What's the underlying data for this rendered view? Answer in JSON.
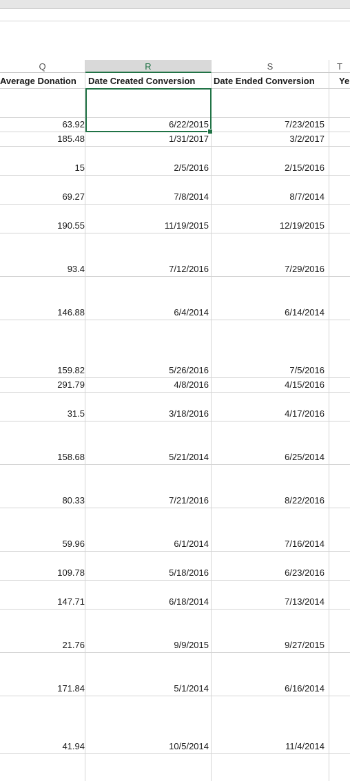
{
  "columns": {
    "letters": {
      "Q": "Q",
      "R": "R",
      "S": "S",
      "T": "T"
    },
    "headers": {
      "Q": "Average Donation",
      "R": "Date Created Conversion",
      "S": "Date Ended Conversion",
      "T": "Ye"
    },
    "selected": "R"
  },
  "rows": [
    {
      "Q": "",
      "R": "",
      "S": ""
    },
    {
      "Q": "63.92",
      "R": "6/22/2015",
      "S": "7/23/2015"
    },
    {
      "Q": "185.48",
      "R": "1/31/2017",
      "S": "3/2/2017"
    },
    {
      "Q": "15",
      "R": "2/5/2016",
      "S": "2/15/2016"
    },
    {
      "Q": "69.27",
      "R": "7/8/2014",
      "S": "8/7/2014"
    },
    {
      "Q": "190.55",
      "R": "11/19/2015",
      "S": "12/19/2015"
    },
    {
      "Q": "93.4",
      "R": "7/12/2016",
      "S": "7/29/2016"
    },
    {
      "Q": "146.88",
      "R": "6/4/2014",
      "S": "6/14/2014"
    },
    {
      "Q": "159.82",
      "R": "5/26/2016",
      "S": "7/5/2016"
    },
    {
      "Q": "291.79",
      "R": "4/8/2016",
      "S": "4/15/2016"
    },
    {
      "Q": "31.5",
      "R": "3/18/2016",
      "S": "4/17/2016"
    },
    {
      "Q": "158.68",
      "R": "5/21/2014",
      "S": "6/25/2014"
    },
    {
      "Q": "80.33",
      "R": "7/21/2016",
      "S": "8/22/2016"
    },
    {
      "Q": "59.96",
      "R": "6/1/2014",
      "S": "7/16/2014"
    },
    {
      "Q": "109.78",
      "R": "5/18/2016",
      "S": "6/23/2016"
    },
    {
      "Q": "147.71",
      "R": "6/18/2014",
      "S": "7/13/2014"
    },
    {
      "Q": "21.76",
      "R": "9/9/2015",
      "S": "9/27/2015"
    },
    {
      "Q": "171.84",
      "R": "5/1/2014",
      "S": "6/16/2014"
    },
    {
      "Q": "41.94",
      "R": "10/5/2014",
      "S": "11/4/2014"
    }
  ],
  "colors": {
    "selection": "#217346",
    "gridline": "#d4d4d4",
    "header_bg_selected": "#d9d9d9"
  }
}
